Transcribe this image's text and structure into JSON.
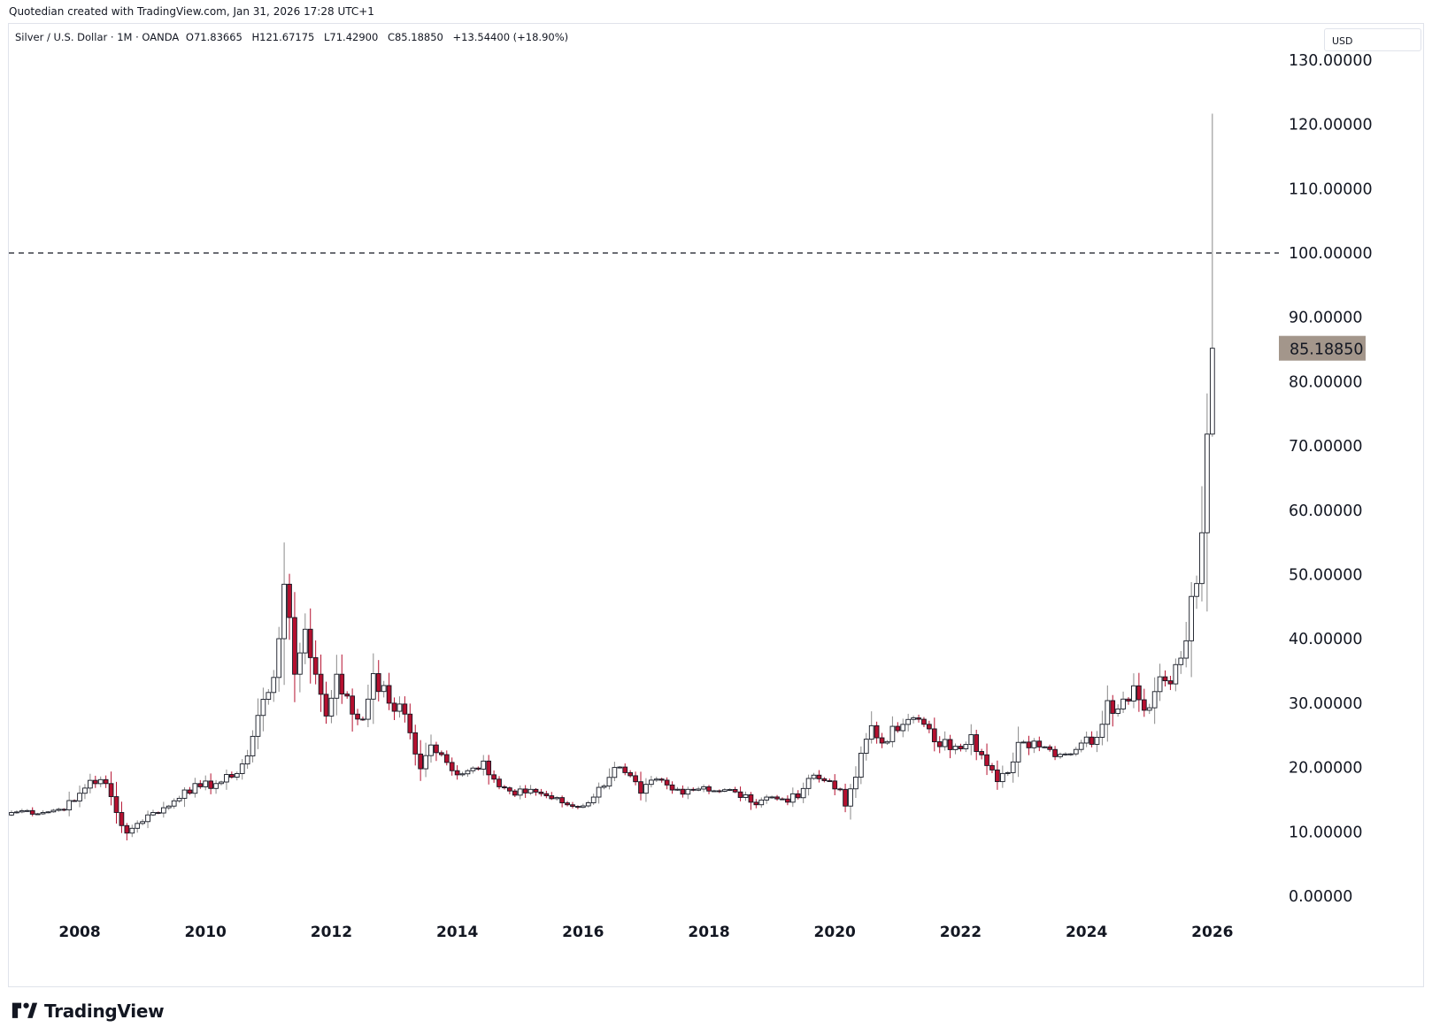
{
  "header": {
    "attribution": "Quotedian created with TradingView.com, Jan 31, 2026 17:28 UTC+1"
  },
  "legend": {
    "symbol_text": "Silver / U.S. Dollar · 1M · OANDA",
    "open": "O71.83665",
    "high": "H121.67175",
    "low": "L71.42900",
    "close": "C85.18850",
    "change": "+13.54400 (+18.90%)"
  },
  "price_axis": {
    "currency": "USD",
    "last_price_label": "85.18850",
    "last_price_color": "#a3968b"
  },
  "brand": {
    "name": "TradingView"
  },
  "colors": {
    "up": "#ffffff",
    "down": "#b5102f",
    "wick": "#8a8a8a",
    "border": "#131722"
  },
  "chart_data": {
    "type": "candlestick",
    "title": "Silver / U.S. Dollar · 1M · OANDA",
    "interval": "1M",
    "ylim": [
      0,
      130
    ],
    "y_ticks": [
      "130.00000",
      "120.00000",
      "110.00000",
      "100.00000",
      "90.00000",
      "80.00000",
      "70.00000",
      "60.00000",
      "50.00000",
      "40.00000",
      "30.00000",
      "20.00000",
      "10.00000",
      "0.00000"
    ],
    "x_ticks": [
      "2008",
      "2010",
      "2012",
      "2014",
      "2016",
      "2018",
      "2020",
      "2022",
      "2024",
      "2026"
    ],
    "horizontal_line": {
      "value": 100,
      "style": "dashed"
    },
    "last_close": 85.1885,
    "grid": false,
    "price_path": [
      [
        "2006-12",
        13.0
      ],
      [
        "2007-03",
        13.3
      ],
      [
        "2007-06",
        13.0
      ],
      [
        "2007-09",
        13.5
      ],
      [
        "2007-12",
        14.8
      ],
      [
        "2008-03",
        18.0
      ],
      [
        "2008-06",
        17.5
      ],
      [
        "2008-08",
        13.0
      ],
      [
        "2008-10",
        9.8
      ],
      [
        "2008-12",
        11.3
      ],
      [
        "2009-03",
        13.0
      ],
      [
        "2009-06",
        14.0
      ],
      [
        "2009-09",
        16.5
      ],
      [
        "2009-12",
        17.0
      ],
      [
        "2010-03",
        17.5
      ],
      [
        "2010-06",
        18.5
      ],
      [
        "2010-09",
        21.8
      ],
      [
        "2010-12",
        30.6
      ],
      [
        "2011-02",
        34.0
      ],
      [
        "2011-04",
        48.5
      ],
      [
        "2011-06",
        34.5
      ],
      [
        "2011-08",
        41.5
      ],
      [
        "2011-10",
        34.5
      ],
      [
        "2011-12",
        28.0
      ],
      [
        "2012-02",
        34.5
      ],
      [
        "2012-05",
        28.3
      ],
      [
        "2012-07",
        27.5
      ],
      [
        "2012-09",
        34.6
      ],
      [
        "2012-12",
        30.0
      ],
      [
        "2013-03",
        28.3
      ],
      [
        "2013-06",
        19.8
      ],
      [
        "2013-08",
        23.5
      ],
      [
        "2013-12",
        19.5
      ],
      [
        "2014-03",
        19.5
      ],
      [
        "2014-06",
        21.0
      ],
      [
        "2014-09",
        17.0
      ],
      [
        "2014-12",
        15.7
      ],
      [
        "2015-03",
        16.6
      ],
      [
        "2015-06",
        15.6
      ],
      [
        "2015-09",
        14.5
      ],
      [
        "2015-12",
        13.8
      ],
      [
        "2016-03",
        15.4
      ],
      [
        "2016-07",
        20.0
      ],
      [
        "2016-09",
        19.2
      ],
      [
        "2016-12",
        16.0
      ],
      [
        "2017-03",
        18.2
      ],
      [
        "2017-06",
        16.5
      ],
      [
        "2017-09",
        16.6
      ],
      [
        "2017-12",
        17.0
      ],
      [
        "2018-03",
        16.3
      ],
      [
        "2018-06",
        16.2
      ],
      [
        "2018-09",
        14.6
      ],
      [
        "2018-12",
        15.4
      ],
      [
        "2019-03",
        15.1
      ],
      [
        "2019-06",
        15.3
      ],
      [
        "2019-08",
        18.3
      ],
      [
        "2019-12",
        17.9
      ],
      [
        "2020-02",
        16.6
      ],
      [
        "2020-03",
        14.0
      ],
      [
        "2020-05",
        18.5
      ],
      [
        "2020-07",
        24.4
      ],
      [
        "2020-08",
        26.5
      ],
      [
        "2020-10",
        23.8
      ],
      [
        "2020-12",
        26.4
      ],
      [
        "2021-02",
        26.7
      ],
      [
        "2021-05",
        27.5
      ],
      [
        "2021-08",
        24.0
      ],
      [
        "2021-12",
        23.3
      ],
      [
        "2022-03",
        25.1
      ],
      [
        "2022-06",
        20.3
      ],
      [
        "2022-08",
        17.8
      ],
      [
        "2022-10",
        19.2
      ],
      [
        "2022-12",
        23.9
      ],
      [
        "2023-03",
        24.1
      ],
      [
        "2023-06",
        22.8
      ],
      [
        "2023-09",
        22.1
      ],
      [
        "2023-12",
        23.8
      ],
      [
        "2024-03",
        24.7
      ],
      [
        "2024-05",
        30.4
      ],
      [
        "2024-07",
        29.1
      ],
      [
        "2024-10",
        32.7
      ],
      [
        "2024-12",
        28.9
      ],
      [
        "2025-02",
        31.8
      ],
      [
        "2025-03",
        34.1
      ],
      [
        "2025-05",
        33.0
      ],
      [
        "2025-06",
        36.0
      ],
      [
        "2025-07",
        37.0
      ],
      [
        "2025-08",
        39.7
      ],
      [
        "2025-09",
        46.6
      ],
      [
        "2025-10",
        48.6
      ],
      [
        "2025-11",
        56.5
      ],
      [
        "2025-12",
        71.83665
      ],
      [
        "2026-01",
        85.1885
      ]
    ],
    "last_candle": {
      "date": "2026-01",
      "open": 71.83665,
      "high": 121.67175,
      "low": 71.429,
      "close": 85.1885
    }
  }
}
